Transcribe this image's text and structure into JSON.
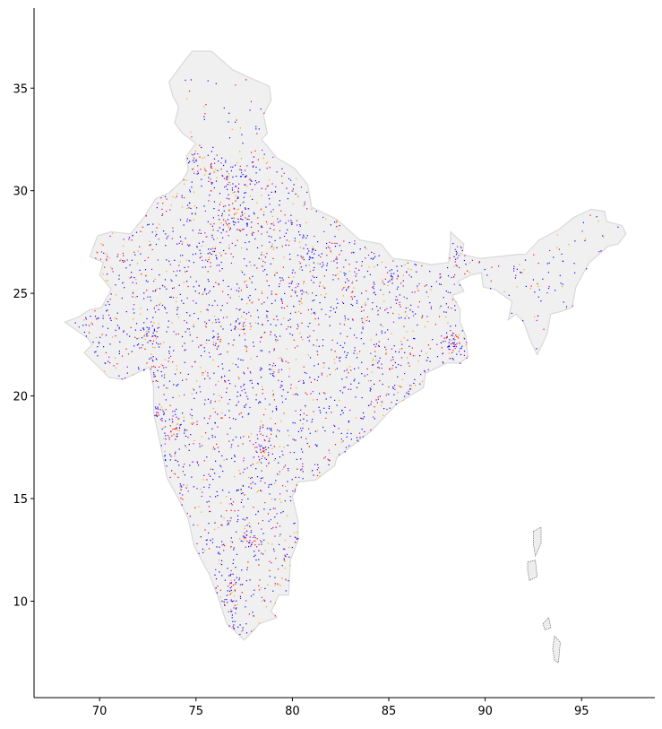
{
  "chart_data": {
    "type": "scatter",
    "title": "",
    "xlabel": "",
    "ylabel": "",
    "xlim": [
      66.6,
      98.8
    ],
    "ylim": [
      5.3,
      38.9
    ],
    "x_ticks": [
      70,
      75,
      80,
      85,
      90,
      95
    ],
    "y_ticks": [
      10,
      15,
      20,
      25,
      30,
      35
    ],
    "x_tick_labels": [
      "70",
      "75",
      "80",
      "85",
      "90",
      "95"
    ],
    "y_tick_labels": [
      "10",
      "15",
      "20",
      "25",
      "30",
      "35"
    ],
    "grid": false,
    "legend": "none",
    "colors": {
      "land_fill": "#f0f0f0",
      "land_edge": "#d9d9d9",
      "series_a": "#0000ff",
      "series_b": "#ff0000",
      "series_c": "#aa00cc",
      "series_d": "#ffa000",
      "islands": "#555555"
    },
    "boundary": [
      [
        68.2,
        23.6
      ],
      [
        68.8,
        23.8
      ],
      [
        69.5,
        24.2
      ],
      [
        70.1,
        24.3
      ],
      [
        70.6,
        25.2
      ],
      [
        70.0,
        25.9
      ],
      [
        70.2,
        26.5
      ],
      [
        69.5,
        26.8
      ],
      [
        69.9,
        27.8
      ],
      [
        70.6,
        28.0
      ],
      [
        71.6,
        27.9
      ],
      [
        72.3,
        28.7
      ],
      [
        72.9,
        29.6
      ],
      [
        73.6,
        29.9
      ],
      [
        74.3,
        30.5
      ],
      [
        74.6,
        31.0
      ],
      [
        74.5,
        31.7
      ],
      [
        75.0,
        32.3
      ],
      [
        74.3,
        32.8
      ],
      [
        73.9,
        33.3
      ],
      [
        74.1,
        34.1
      ],
      [
        73.8,
        34.6
      ],
      [
        73.6,
        35.3
      ],
      [
        74.3,
        36.2
      ],
      [
        74.8,
        36.8
      ],
      [
        75.8,
        36.8
      ],
      [
        76.9,
        35.9
      ],
      [
        77.8,
        35.5
      ],
      [
        78.8,
        35.1
      ],
      [
        78.9,
        34.4
      ],
      [
        78.5,
        33.7
      ],
      [
        78.7,
        32.8
      ],
      [
        78.4,
        32.5
      ],
      [
        79.2,
        31.6
      ],
      [
        80.1,
        31.1
      ],
      [
        80.8,
        30.3
      ],
      [
        81.0,
        29.2
      ],
      [
        82.3,
        28.6
      ],
      [
        83.5,
        27.6
      ],
      [
        84.6,
        27.4
      ],
      [
        85.2,
        26.7
      ],
      [
        86.1,
        26.6
      ],
      [
        87.2,
        26.4
      ],
      [
        88.1,
        26.5
      ],
      [
        88.2,
        27.4
      ],
      [
        88.2,
        28.0
      ],
      [
        88.9,
        27.4
      ],
      [
        88.8,
        26.9
      ],
      [
        89.7,
        26.7
      ],
      [
        90.8,
        26.8
      ],
      [
        91.7,
        26.9
      ],
      [
        92.1,
        26.9
      ],
      [
        92.8,
        27.6
      ],
      [
        93.8,
        28.1
      ],
      [
        94.6,
        28.7
      ],
      [
        95.5,
        29.1
      ],
      [
        96.2,
        29.0
      ],
      [
        96.3,
        28.5
      ],
      [
        97.1,
        28.3
      ],
      [
        97.3,
        27.9
      ],
      [
        96.9,
        27.4
      ],
      [
        96.4,
        27.3
      ],
      [
        95.4,
        26.5
      ],
      [
        95.1,
        26.0
      ],
      [
        94.7,
        25.3
      ],
      [
        94.5,
        24.3
      ],
      [
        93.9,
        24.1
      ],
      [
        93.4,
        24.0
      ],
      [
        93.2,
        23.0
      ],
      [
        92.7,
        22.0
      ],
      [
        92.3,
        22.8
      ],
      [
        92.0,
        23.6
      ],
      [
        91.6,
        24.0
      ],
      [
        91.2,
        23.7
      ],
      [
        91.4,
        24.6
      ],
      [
        90.5,
        25.2
      ],
      [
        89.9,
        25.3
      ],
      [
        89.8,
        26.0
      ],
      [
        89.3,
        25.9
      ],
      [
        88.6,
        25.6
      ],
      [
        88.9,
        25.1
      ],
      [
        88.3,
        24.9
      ],
      [
        88.7,
        24.2
      ],
      [
        88.7,
        23.6
      ],
      [
        89.0,
        22.9
      ],
      [
        89.1,
        21.9
      ],
      [
        88.7,
        21.6
      ],
      [
        88.0,
        21.6
      ],
      [
        86.9,
        21.1
      ],
      [
        86.8,
        20.4
      ],
      [
        85.4,
        19.6
      ],
      [
        84.8,
        19.0
      ],
      [
        84.1,
        18.3
      ],
      [
        82.3,
        17.0
      ],
      [
        82.2,
        16.6
      ],
      [
        81.2,
        15.9
      ],
      [
        80.3,
        15.8
      ],
      [
        80.0,
        15.1
      ],
      [
        80.3,
        13.9
      ],
      [
        80.3,
        13.0
      ],
      [
        79.9,
        12.0
      ],
      [
        79.8,
        10.3
      ],
      [
        79.3,
        10.3
      ],
      [
        78.9,
        9.5
      ],
      [
        79.2,
        9.2
      ],
      [
        78.3,
        8.9
      ],
      [
        77.5,
        8.1
      ],
      [
        76.6,
        8.9
      ],
      [
        76.1,
        10.3
      ],
      [
        75.7,
        11.3
      ],
      [
        75.4,
        11.8
      ],
      [
        74.9,
        12.7
      ],
      [
        74.6,
        14.0
      ],
      [
        74.2,
        14.8
      ],
      [
        73.5,
        16.0
      ],
      [
        73.1,
        17.9
      ],
      [
        72.8,
        19.2
      ],
      [
        72.8,
        20.4
      ],
      [
        72.6,
        21.4
      ],
      [
        71.2,
        20.8
      ],
      [
        70.5,
        20.9
      ],
      [
        69.2,
        22.1
      ],
      [
        69.6,
        22.5
      ],
      [
        69.4,
        22.8
      ],
      [
        68.2,
        23.6
      ]
    ],
    "islands": [
      [
        [
          92.5,
          13.4
        ],
        [
          92.9,
          13.6
        ],
        [
          92.9,
          12.8
        ],
        [
          92.6,
          12.2
        ],
        [
          92.5,
          12.8
        ]
      ],
      [
        [
          92.2,
          11.9
        ],
        [
          92.6,
          12.0
        ],
        [
          92.7,
          11.2
        ],
        [
          92.3,
          11.0
        ],
        [
          92.2,
          11.5
        ]
      ],
      [
        [
          93.6,
          8.3
        ],
        [
          93.9,
          8.0
        ],
        [
          93.8,
          7.0
        ],
        [
          93.6,
          7.1
        ],
        [
          93.5,
          7.7
        ]
      ],
      [
        [
          93.0,
          8.9
        ],
        [
          93.3,
          9.2
        ],
        [
          93.4,
          8.7
        ],
        [
          93.1,
          8.6
        ]
      ]
    ],
    "series": [
      {
        "color_key": "series_a",
        "points": []
      },
      {
        "color_key": "series_b",
        "points": []
      }
    ],
    "hotspots": [
      [
        77.2,
        28.6,
        0.5,
        55
      ],
      [
        72.9,
        19.1,
        0.3,
        45
      ],
      [
        73.9,
        18.5,
        0.3,
        35
      ],
      [
        78.5,
        17.4,
        0.3,
        35
      ],
      [
        77.6,
        13.0,
        0.3,
        30
      ],
      [
        80.3,
        13.1,
        0.2,
        30
      ],
      [
        88.4,
        22.6,
        0.3,
        40
      ],
      [
        72.6,
        23.0,
        0.3,
        35
      ],
      [
        76.9,
        30.7,
        0.4,
        30
      ],
      [
        80.9,
        26.8,
        0.3,
        20
      ],
      [
        75.8,
        26.9,
        0.3,
        20
      ],
      [
        77.4,
        23.3,
        0.2,
        12
      ],
      [
        75.9,
        22.7,
        0.2,
        12
      ],
      [
        79.1,
        21.1,
        0.2,
        10
      ],
      [
        85.1,
        25.6,
        0.4,
        20
      ],
      [
        83.0,
        25.3,
        0.3,
        15
      ],
      [
        76.3,
        10.0,
        0.4,
        40
      ],
      [
        76.9,
        8.5,
        0.3,
        25
      ],
      [
        76.9,
        11.0,
        0.3,
        20
      ],
      [
        73.0,
        21.2,
        0.2,
        12
      ],
      [
        85.8,
        20.3,
        0.3,
        15
      ],
      [
        83.3,
        17.7,
        0.3,
        12
      ],
      [
        74.8,
        31.6,
        0.3,
        18
      ],
      [
        75.8,
        31.0,
        0.3,
        18
      ],
      [
        88.4,
        26.7,
        0.2,
        10
      ],
      [
        91.7,
        26.1,
        0.2,
        8
      ],
      [
        74.1,
        15.4,
        0.2,
        12
      ],
      [
        75.5,
        13.0,
        0.3,
        10
      ]
    ]
  }
}
